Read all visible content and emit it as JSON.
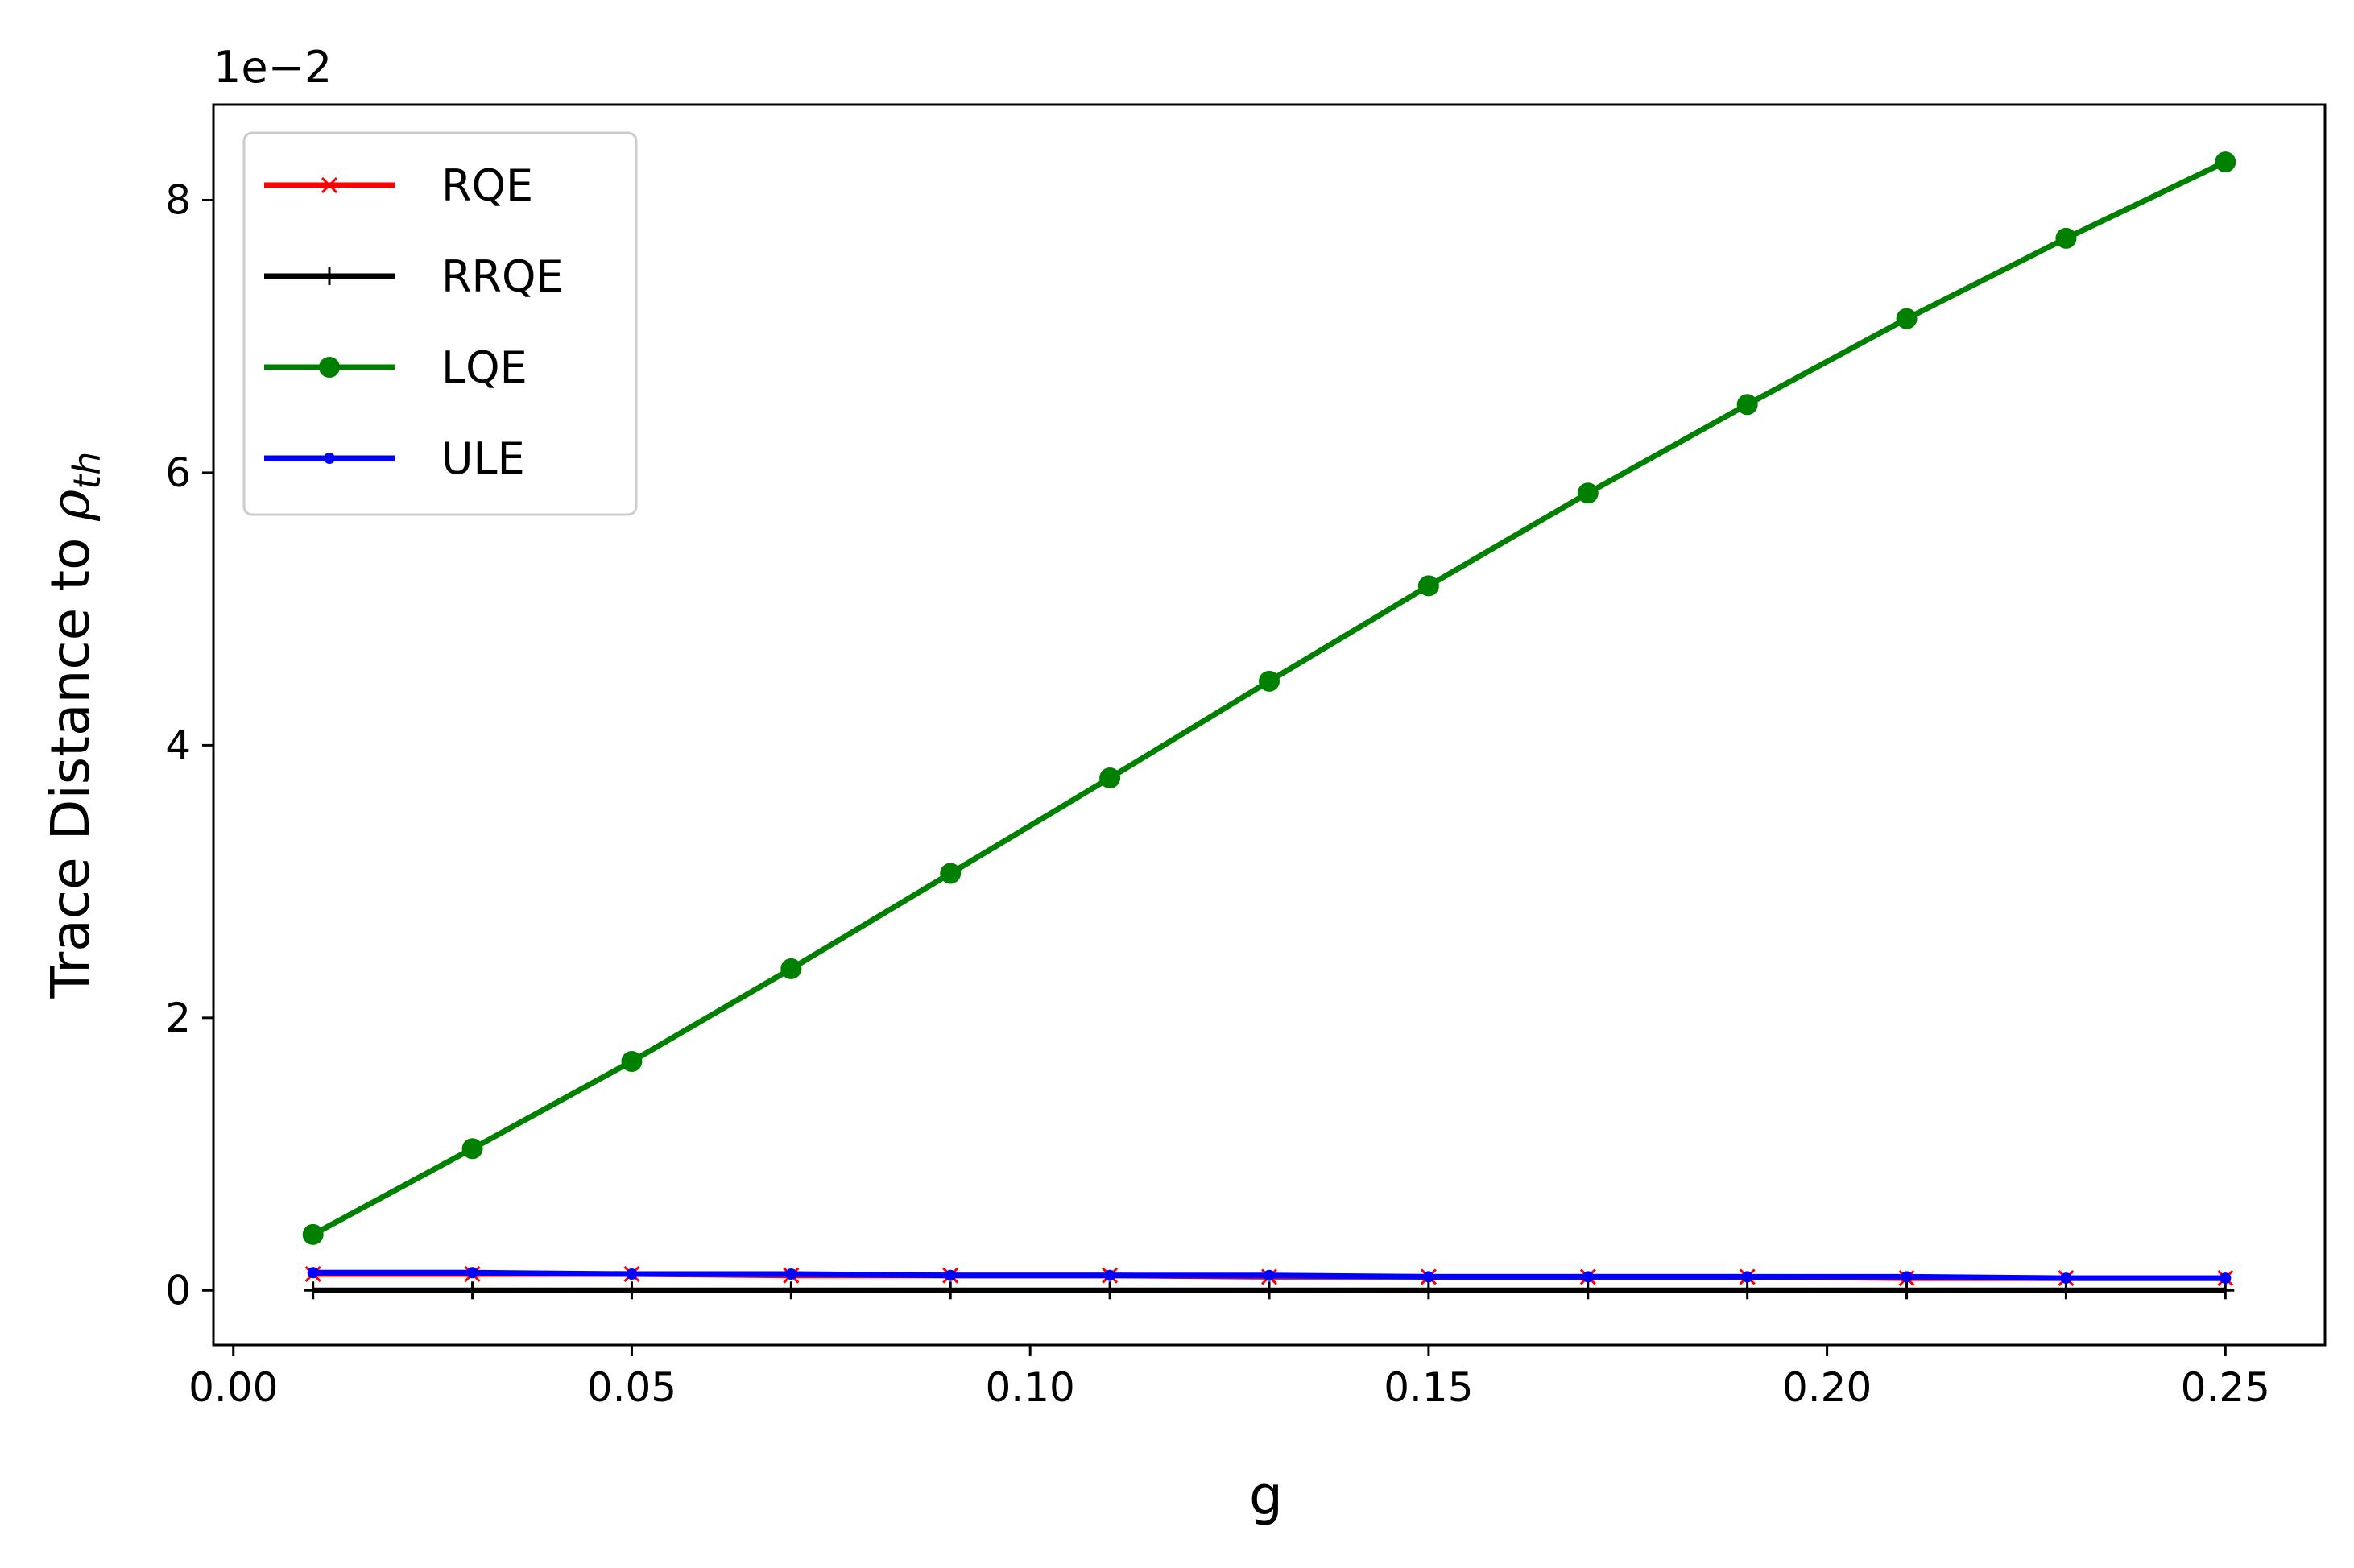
{
  "chart_data": {
    "type": "line",
    "xlabel": "g",
    "ylabel_main": "Trace Distance to ",
    "ylabel_symbol": "ρ",
    "ylabel_subscript": "th",
    "y_offset_label": "1e−2",
    "xlim": [
      -0.0025,
      0.2625
    ],
    "ylim": [
      -0.4,
      8.7
    ],
    "x_ticks": [
      0.0,
      0.05,
      0.1,
      0.15,
      0.2,
      0.25
    ],
    "x_tick_labels": [
      "0.00",
      "0.05",
      "0.10",
      "0.15",
      "0.20",
      "0.25"
    ],
    "y_ticks": [
      0,
      2,
      4,
      6,
      8
    ],
    "y_tick_labels": [
      "0",
      "2",
      "4",
      "6",
      "8"
    ],
    "legend_position": "top-left",
    "x": [
      0.01,
      0.03,
      0.05,
      0.07,
      0.09,
      0.11,
      0.13,
      0.15,
      0.17,
      0.19,
      0.21,
      0.23,
      0.25
    ],
    "series": [
      {
        "name": "RQE",
        "color": "#ff0000",
        "marker": "x",
        "values": [
          0.12,
          0.12,
          0.12,
          0.11,
          0.11,
          0.11,
          0.1,
          0.1,
          0.1,
          0.1,
          0.09,
          0.09,
          0.09
        ]
      },
      {
        "name": "RRQE",
        "color": "#000000",
        "marker": "+",
        "values": [
          0.0,
          0.0,
          0.0,
          0.0,
          0.0,
          0.0,
          0.0,
          0.0,
          0.0,
          0.0,
          0.0,
          0.0,
          0.0
        ]
      },
      {
        "name": "LQE",
        "color": "#008000",
        "marker": "o",
        "values": [
          0.41,
          1.04,
          1.68,
          2.36,
          3.06,
          3.76,
          4.47,
          5.17,
          5.85,
          6.5,
          7.13,
          7.72,
          8.28
        ]
      },
      {
        "name": "ULE",
        "color": "#0000ff",
        "marker": ".",
        "values": [
          0.13,
          0.13,
          0.12,
          0.12,
          0.11,
          0.11,
          0.11,
          0.1,
          0.1,
          0.1,
          0.1,
          0.09,
          0.09
        ]
      }
    ]
  }
}
